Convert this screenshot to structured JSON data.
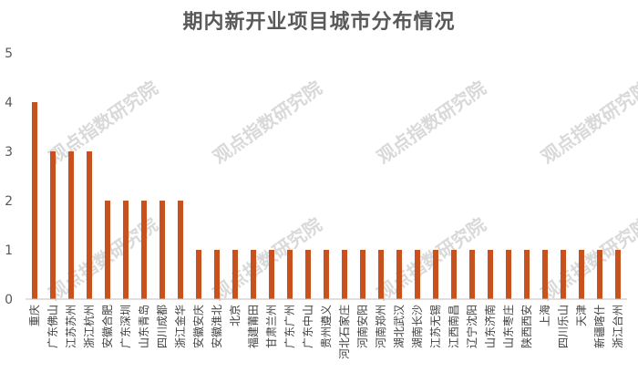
{
  "chart_data": {
    "type": "bar",
    "title": "期内新开业项目城市分布情况",
    "xlabel": "",
    "ylabel": "",
    "ylim": [
      0,
      5
    ],
    "yticks": [
      0,
      1,
      2,
      3,
      4,
      5
    ],
    "grid": false,
    "legend": "none",
    "bar_color": "#c8511e",
    "categories": [
      "重庆",
      "广东佛山",
      "江苏苏州",
      "浙江杭州",
      "安徽合肥",
      "广东深圳",
      "山东青岛",
      "四川成都",
      "浙江金华",
      "安徽安庆",
      "安徽淮北",
      "北京",
      "福建莆田",
      "甘肃兰州",
      "广东广州",
      "广东中山",
      "贵州遵义",
      "河北石家庄",
      "河南安阳",
      "河南郑州",
      "湖北武汉",
      "湖南长沙",
      "江苏无锡",
      "江西南昌",
      "辽宁沈阳",
      "山东济南",
      "山东枣庄",
      "陕西西安",
      "上海",
      "四川乐山",
      "天津",
      "新疆喀什",
      "浙江台州"
    ],
    "values": [
      4,
      3,
      3,
      3,
      2,
      2,
      2,
      2,
      2,
      1,
      1,
      1,
      1,
      1,
      1,
      1,
      1,
      1,
      1,
      1,
      1,
      1,
      1,
      1,
      1,
      1,
      1,
      1,
      1,
      1,
      1,
      1,
      1
    ]
  },
  "watermark": "观点指数研究院"
}
